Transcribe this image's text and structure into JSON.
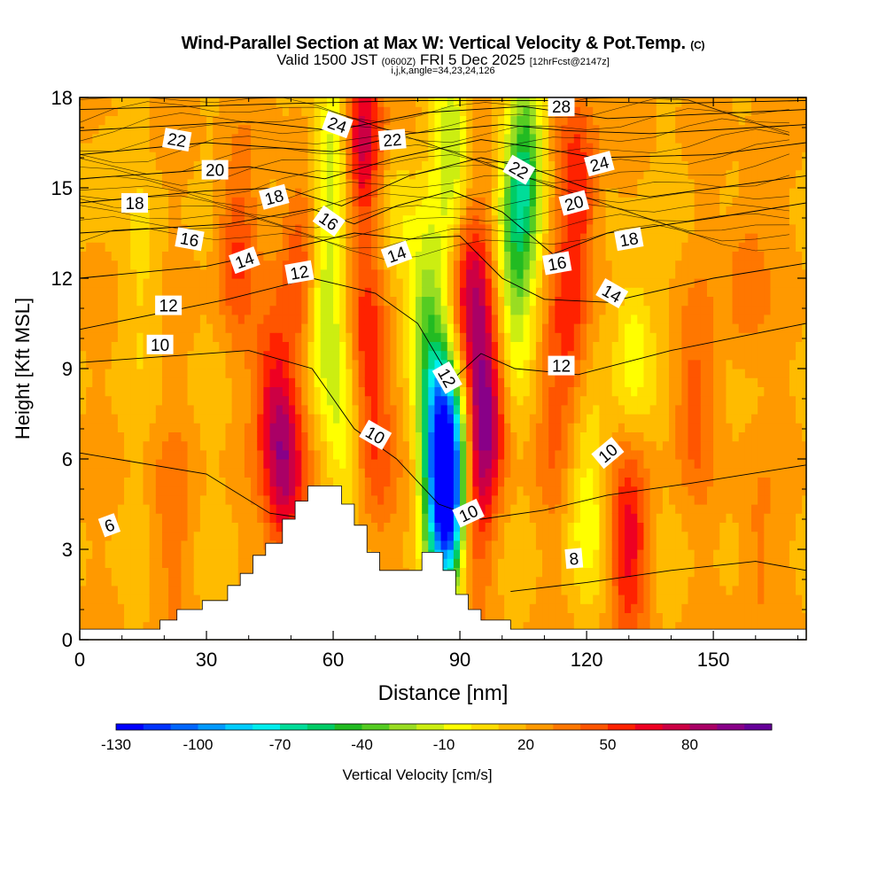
{
  "title": {
    "main": "Wind-Parallel Section at Max W: Vertical Velocity & Pot.Temp.",
    "copyright": "(C)",
    "valid_prefix": "Valid 1500 JST",
    "valid_utc": "(0600Z)",
    "valid_date": "FRI 5 Dec 2025",
    "forecast": "[12hrFcst@2147z]",
    "indices": "i,j,k,angle=34,23,24,126"
  },
  "chart_data": {
    "type": "heatmap",
    "xlabel": "Distance [nm]",
    "ylabel": "Height [Kft MSL]",
    "xlim": [
      0,
      172
    ],
    "ylim": [
      0,
      18
    ],
    "x_ticks": [
      0,
      30,
      60,
      90,
      120,
      150
    ],
    "y_ticks": [
      0,
      3,
      6,
      9,
      12,
      15,
      18
    ],
    "colorbar": {
      "label": "Vertical Velocity [cm/s]",
      "min": -130,
      "step": 10,
      "tick_labels": [
        -130,
        -100,
        -70,
        -40,
        -10,
        20,
        50,
        80
      ],
      "colors": [
        "#0000ff",
        "#0033ff",
        "#0066ff",
        "#0099ff",
        "#00ccff",
        "#00eeee",
        "#00dd99",
        "#00cc66",
        "#22bb22",
        "#55cc22",
        "#99dd22",
        "#ccee11",
        "#ffff00",
        "#ffdd00",
        "#ffbb00",
        "#ff9900",
        "#ff7700",
        "#ff5500",
        "#ff2200",
        "#ee0022",
        "#cc0044",
        "#aa0066",
        "#880088",
        "#660099"
      ]
    },
    "terrain": [
      [
        0,
        0.35
      ],
      [
        19,
        0.35
      ],
      [
        19,
        0.65
      ],
      [
        23,
        0.65
      ],
      [
        23,
        1.0
      ],
      [
        29,
        1.0
      ],
      [
        29,
        1.3
      ],
      [
        35,
        1.3
      ],
      [
        35,
        1.8
      ],
      [
        38,
        1.8
      ],
      [
        38,
        2.2
      ],
      [
        41,
        2.2
      ],
      [
        41,
        2.8
      ],
      [
        44,
        2.8
      ],
      [
        44,
        3.2
      ],
      [
        48,
        3.2
      ],
      [
        48,
        4.0
      ],
      [
        51,
        4.0
      ],
      [
        51,
        4.6
      ],
      [
        54,
        4.6
      ],
      [
        54,
        5.1
      ],
      [
        59,
        5.1
      ],
      [
        59,
        5.1
      ],
      [
        62,
        5.1
      ],
      [
        62,
        4.5
      ],
      [
        65,
        4.5
      ],
      [
        65,
        3.8
      ],
      [
        68,
        3.8
      ],
      [
        68,
        2.9
      ],
      [
        71,
        2.9
      ],
      [
        71,
        2.3
      ],
      [
        81,
        2.3
      ],
      [
        81,
        2.9
      ],
      [
        86,
        2.9
      ],
      [
        86,
        2.3
      ],
      [
        89,
        2.3
      ],
      [
        89,
        1.5
      ],
      [
        92,
        1.5
      ],
      [
        92,
        1.0
      ],
      [
        95,
        1.0
      ],
      [
        95,
        0.65
      ],
      [
        102,
        0.65
      ],
      [
        102,
        0.35
      ],
      [
        172,
        0.35
      ]
    ],
    "w_features": [
      {
        "x": 49,
        "z": 5.5,
        "w": 55
      },
      {
        "x": 46,
        "z": 8.0,
        "w": 40
      },
      {
        "x": 37,
        "z": 13.0,
        "w": 30
      },
      {
        "x": 52,
        "z": 12.5,
        "w": 35
      },
      {
        "x": 58,
        "z": 11.0,
        "w": -45
      },
      {
        "x": 62,
        "z": 7.0,
        "w": -30
      },
      {
        "x": 60,
        "z": 16.5,
        "w": -40
      },
      {
        "x": 67,
        "z": 16.5,
        "w": 60
      },
      {
        "x": 68,
        "z": 10.0,
        "w": 40
      },
      {
        "x": 70,
        "z": 6.0,
        "w": 25
      },
      {
        "x": 75,
        "z": 14.0,
        "w": -20
      },
      {
        "x": 82,
        "z": 11.0,
        "w": -45
      },
      {
        "x": 85,
        "z": 7.0,
        "w": -85
      },
      {
        "x": 88,
        "z": 5.3,
        "w": -115
      },
      {
        "x": 86,
        "z": 3.5,
        "w": -60
      },
      {
        "x": 88,
        "z": 16.5,
        "w": -40
      },
      {
        "x": 96,
        "z": 7.5,
        "w": 70
      },
      {
        "x": 93,
        "z": 11.5,
        "w": 50
      },
      {
        "x": 92,
        "z": 4.0,
        "w": 40
      },
      {
        "x": 104,
        "z": 14.0,
        "w": -50
      },
      {
        "x": 106,
        "z": 16.5,
        "w": -45
      },
      {
        "x": 103,
        "z": 11.0,
        "w": -25
      },
      {
        "x": 118,
        "z": 15.0,
        "w": 40
      },
      {
        "x": 116,
        "z": 10.5,
        "w": 30
      },
      {
        "x": 112,
        "z": 7.0,
        "w": 15
      },
      {
        "x": 120,
        "z": 4.5,
        "w": -25
      },
      {
        "x": 130,
        "z": 3.3,
        "w": 45
      },
      {
        "x": 131,
        "z": 9.5,
        "w": -30
      },
      {
        "x": 145,
        "z": 8.0,
        "w": 25
      },
      {
        "x": 158,
        "z": 12.0,
        "w": 20
      },
      {
        "x": 15,
        "z": 12.0,
        "w": -10
      },
      {
        "x": 22,
        "z": 4.0,
        "w": 15
      },
      {
        "x": 160,
        "z": 3.0,
        "w": 15
      },
      {
        "x": 5,
        "z": 16.0,
        "w": -8
      }
    ],
    "theta_contours": [
      {
        "label": "6",
        "pts": [
          [
            0,
            6.2
          ],
          [
            30,
            5.5
          ],
          [
            45,
            4.2
          ],
          [
            55,
            4.0
          ]
        ]
      },
      {
        "label": "8",
        "pts": [
          [
            102,
            1.6
          ],
          [
            120,
            1.9
          ],
          [
            140,
            2.3
          ],
          [
            160,
            2.6
          ],
          [
            172,
            2.3
          ]
        ]
      },
      {
        "label": "10",
        "pts": [
          [
            0,
            9.2
          ],
          [
            40,
            9.6
          ],
          [
            55,
            9.0
          ],
          [
            65,
            7.0
          ],
          [
            75,
            6.0
          ],
          [
            85,
            4.5
          ],
          [
            95,
            4.0
          ],
          [
            110,
            4.3
          ],
          [
            125,
            4.8
          ],
          [
            145,
            5.2
          ],
          [
            172,
            5.8
          ]
        ]
      },
      {
        "label": "12",
        "pts": [
          [
            0,
            10.3
          ],
          [
            35,
            11.3
          ],
          [
            55,
            12.0
          ],
          [
            70,
            11.5
          ],
          [
            80,
            10.5
          ],
          [
            88,
            8.6
          ],
          [
            95,
            9.5
          ],
          [
            103,
            9.0
          ],
          [
            118,
            8.8
          ],
          [
            140,
            9.6
          ],
          [
            172,
            10.5
          ]
        ]
      },
      {
        "label": "14",
        "pts": [
          [
            0,
            12.0
          ],
          [
            30,
            12.4
          ],
          [
            50,
            13.0
          ],
          [
            65,
            13.5
          ],
          [
            78,
            13.3
          ],
          [
            90,
            13.4
          ],
          [
            100,
            12.0
          ],
          [
            110,
            11.3
          ],
          [
            125,
            11.2
          ],
          [
            150,
            12.0
          ],
          [
            172,
            12.5
          ]
        ]
      },
      {
        "label": "16",
        "pts": [
          [
            0,
            13.5
          ],
          [
            35,
            13.8
          ],
          [
            55,
            14.3
          ],
          [
            65,
            13.8
          ],
          [
            75,
            14.4
          ],
          [
            88,
            14.9
          ],
          [
            100,
            14.2
          ],
          [
            112,
            12.8
          ],
          [
            125,
            13.5
          ],
          [
            150,
            14.0
          ],
          [
            172,
            14.5
          ]
        ]
      },
      {
        "label": "18",
        "pts": [
          [
            0,
            14.5
          ],
          [
            30,
            14.9
          ],
          [
            48,
            15.0
          ],
          [
            62,
            14.4
          ],
          [
            78,
            15.4
          ],
          [
            95,
            16.0
          ],
          [
            108,
            15.6
          ],
          [
            120,
            15.0
          ],
          [
            135,
            14.7
          ],
          [
            172,
            15.4
          ]
        ]
      },
      {
        "label": "20",
        "pts": [
          [
            0,
            15.3
          ],
          [
            40,
            15.7
          ],
          [
            58,
            15.3
          ],
          [
            75,
            16.0
          ],
          [
            95,
            16.6
          ],
          [
            110,
            16.3
          ],
          [
            122,
            16.0
          ],
          [
            150,
            16.1
          ],
          [
            172,
            16.5
          ]
        ]
      },
      {
        "label": "22",
        "pts": [
          [
            0,
            16.1
          ],
          [
            30,
            16.5
          ],
          [
            60,
            16.2
          ],
          [
            78,
            16.8
          ],
          [
            100,
            17.1
          ],
          [
            115,
            16.9
          ],
          [
            135,
            16.8
          ],
          [
            172,
            17.1
          ]
        ]
      },
      {
        "label": "24",
        "pts": [
          [
            0,
            16.9
          ],
          [
            40,
            17.2
          ],
          [
            60,
            16.9
          ],
          [
            82,
            17.5
          ],
          [
            105,
            17.7
          ],
          [
            125,
            17.3
          ],
          [
            172,
            17.6
          ]
        ]
      },
      {
        "label": "28",
        "pts": [
          [
            0,
            17.6
          ],
          [
            50,
            17.8
          ],
          [
            80,
            17.9
          ],
          [
            110,
            17.9
          ],
          [
            140,
            17.8
          ],
          [
            172,
            17.9
          ]
        ]
      }
    ],
    "contour_labels": [
      {
        "text": "6",
        "x": 7,
        "z": 3.8,
        "rot": -20
      },
      {
        "text": "8",
        "x": 117,
        "z": 2.7,
        "rot": -5
      },
      {
        "text": "10",
        "x": 70,
        "z": 6.8,
        "rot": 30
      },
      {
        "text": "10",
        "x": 92,
        "z": 4.2,
        "rot": -25
      },
      {
        "text": "10",
        "x": 125,
        "z": 6.2,
        "rot": -40
      },
      {
        "text": "10",
        "x": 19,
        "z": 9.8,
        "rot": 0
      },
      {
        "text": "12",
        "x": 21,
        "z": 11.1,
        "rot": 0
      },
      {
        "text": "12",
        "x": 52,
        "z": 12.2,
        "rot": -10
      },
      {
        "text": "12",
        "x": 87,
        "z": 8.7,
        "rot": 60
      },
      {
        "text": "12",
        "x": 114,
        "z": 9.1,
        "rot": 0
      },
      {
        "text": "14",
        "x": 39,
        "z": 12.6,
        "rot": -20
      },
      {
        "text": "14",
        "x": 75,
        "z": 12.8,
        "rot": -20
      },
      {
        "text": "14",
        "x": 126,
        "z": 11.5,
        "rot": 30
      },
      {
        "text": "16",
        "x": 26,
        "z": 13.3,
        "rot": 10
      },
      {
        "text": "16",
        "x": 59,
        "z": 13.9,
        "rot": 35
      },
      {
        "text": "16",
        "x": 113,
        "z": 12.5,
        "rot": -10
      },
      {
        "text": "18",
        "x": 13,
        "z": 14.5,
        "rot": 0
      },
      {
        "text": "18",
        "x": 46,
        "z": 14.7,
        "rot": -15
      },
      {
        "text": "18",
        "x": 130,
        "z": 13.3,
        "rot": -10
      },
      {
        "text": "20",
        "x": 32,
        "z": 15.6,
        "rot": 0
      },
      {
        "text": "20",
        "x": 117,
        "z": 14.5,
        "rot": -15
      },
      {
        "text": "22",
        "x": 23,
        "z": 16.6,
        "rot": 10
      },
      {
        "text": "22",
        "x": 74,
        "z": 16.6,
        "rot": -5
      },
      {
        "text": "22",
        "x": 104,
        "z": 15.6,
        "rot": 30
      },
      {
        "text": "24",
        "x": 61,
        "z": 17.1,
        "rot": 20
      },
      {
        "text": "24",
        "x": 123,
        "z": 15.8,
        "rot": -15
      },
      {
        "text": "28",
        "x": 114,
        "z": 17.7,
        "rot": 0
      }
    ]
  }
}
